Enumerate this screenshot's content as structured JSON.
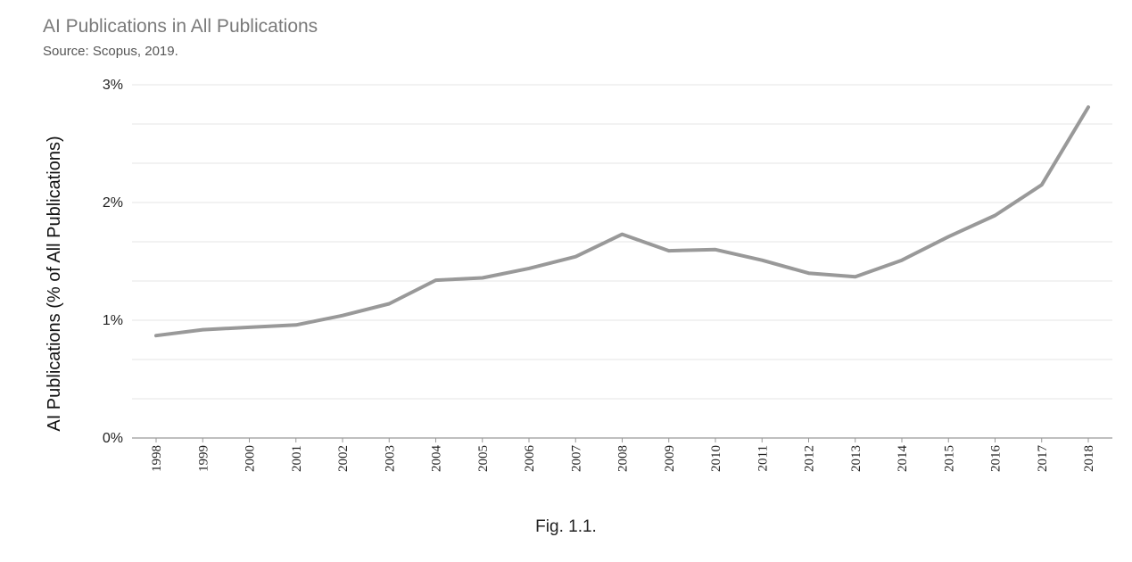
{
  "title": "AI Publications in All Publications",
  "subtitle": "Source: Scopus, 2019.",
  "caption": "Fig. 1.1.",
  "chart_data": {
    "type": "line",
    "title": "AI Publications in All Publications",
    "subtitle": "Source: Scopus, 2019.",
    "xlabel": "",
    "ylabel": "AI Publications (% of All Publications)",
    "x": [
      "1998",
      "1999",
      "2000",
      "2001",
      "2002",
      "2003",
      "2004",
      "2005",
      "2006",
      "2007",
      "2008",
      "2009",
      "2010",
      "2011",
      "2012",
      "2013",
      "2014",
      "2015",
      "2016",
      "2017",
      "2018"
    ],
    "y_tick_labels": [
      "0%",
      "1%",
      "2%",
      "3%"
    ],
    "ylim": [
      0,
      3
    ],
    "grid": true,
    "series": [
      {
        "values": [
          0.87,
          0.92,
          0.94,
          0.96,
          1.04,
          1.14,
          1.34,
          1.36,
          1.44,
          1.54,
          1.73,
          1.59,
          1.6,
          1.51,
          1.4,
          1.37,
          1.51,
          1.71,
          1.89,
          2.15,
          2.81
        ],
        "color": "#999999"
      }
    ]
  }
}
